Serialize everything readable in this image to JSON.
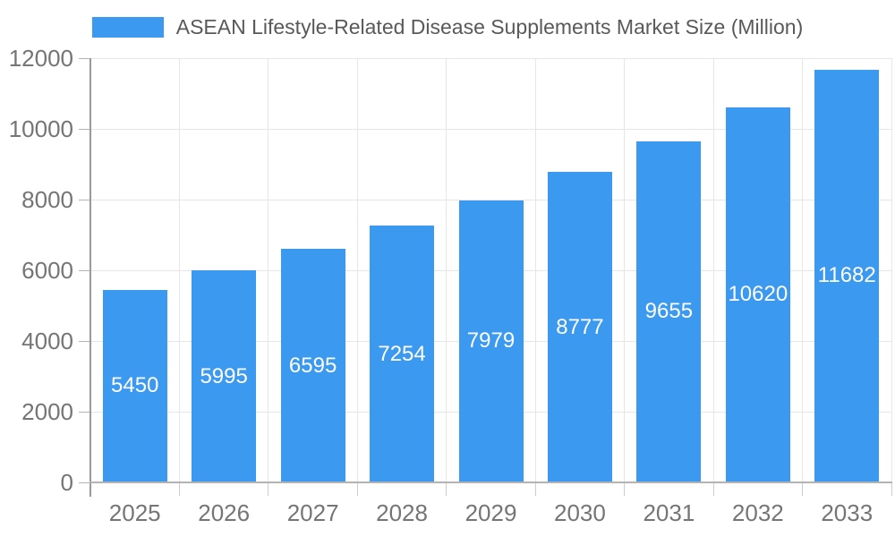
{
  "chart_data": {
    "type": "bar",
    "title": "ASEAN Lifestyle-Related Disease Supplements Market Size (Million)",
    "series_name": "ASEAN Lifestyle-Related Disease Supplements Market Size (Million)",
    "categories": [
      "2025",
      "2026",
      "2027",
      "2028",
      "2029",
      "2030",
      "2031",
      "2032",
      "2033"
    ],
    "values": [
      5450,
      5995,
      6595,
      7254,
      7979,
      8777,
      9655,
      10620,
      11682
    ],
    "bar_value_labels": [
      "5450",
      "5995",
      "6595",
      "7254",
      "7979",
      "8777",
      "9655",
      "10620",
      "11682"
    ],
    "xlabel": "",
    "ylabel": "",
    "ylim": [
      0,
      12000
    ],
    "yticks": [
      0,
      2000,
      4000,
      6000,
      8000,
      10000,
      12000
    ],
    "ytick_labels": [
      "0",
      "2000",
      "4000",
      "6000",
      "8000",
      "10000",
      "12000"
    ],
    "grid": true,
    "legend_position": "top-center",
    "colors": {
      "bar": "#3b99f0",
      "bar_label_text": "#ffffff",
      "axis_tick_text": "#757575",
      "legend_text": "#595959",
      "grid_line": "#e6e6e6",
      "x_axis_line": "#b3b3b3",
      "y_axis_line": "#999999"
    }
  }
}
